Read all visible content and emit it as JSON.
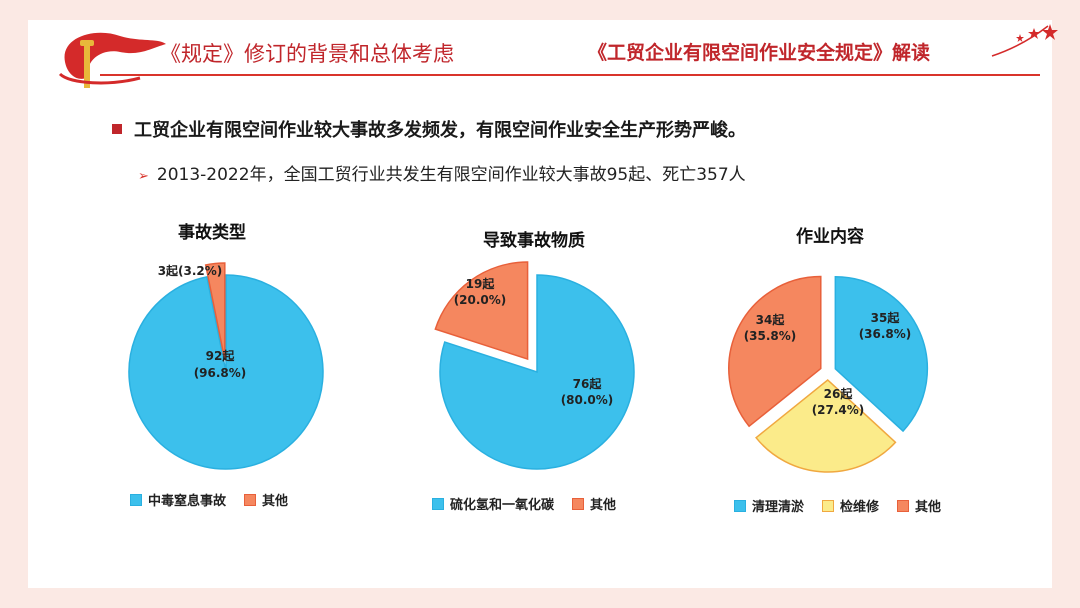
{
  "header": {
    "left_title": "《规定》修订的背景和总体考虑",
    "right_title": "《工贸企业有限空间作业安全规定》解读"
  },
  "bullets": {
    "main": "工贸企业有限空间作业较大事故多发频发，有限空间作业安全生产形势严峻。",
    "sub": "2013-2022年，全国工贸行业共发生有限空间作业较大事故95起、死亡357人"
  },
  "colors": {
    "blue": "#3cc0ec",
    "orange": "#f5875f",
    "yellow": "#fbeb8a",
    "red": "#c0262b"
  },
  "icons": {
    "bullet_square": "square-bullet-icon",
    "bullet_arrow": "arrow-bullet-icon"
  },
  "arrow_glyph": "➢",
  "chart_data": [
    {
      "type": "pie",
      "title": "事故类型",
      "slices": [
        {
          "label": "92起\n(96.8%)",
          "name": "中毒窒息事故",
          "value": 92,
          "color": "#3cc0ec",
          "explode": false
        },
        {
          "label": "3起(3.2%)",
          "name": "其他",
          "value": 3,
          "color": "#f5875f",
          "explode": true
        }
      ],
      "legend": [
        "中毒窒息事故",
        "其他"
      ],
      "legend_position": "bottom"
    },
    {
      "type": "pie",
      "title": "导致事故物质",
      "slices": [
        {
          "label": "76起\n(80.0%)",
          "name": "硫化氢和一氧化碳",
          "value": 76,
          "color": "#3cc0ec",
          "explode": false
        },
        {
          "label": "19起\n(20.0%)",
          "name": "其他",
          "value": 19,
          "color": "#f5875f",
          "explode": true
        }
      ],
      "legend": [
        "硫化氢和一氧化碳",
        "其他"
      ],
      "legend_position": "bottom"
    },
    {
      "type": "pie",
      "title": "作业内容",
      "slices": [
        {
          "label": "35起\n(36.8%)",
          "name": "清理清淤",
          "value": 35,
          "color": "#3cc0ec",
          "explode": true
        },
        {
          "label": "26起\n(27.4%)",
          "name": "检维修",
          "value": 26,
          "color": "#fbeb8a",
          "explode": true
        },
        {
          "label": "34起\n(35.8%)",
          "name": "其他",
          "value": 34,
          "color": "#f5875f",
          "explode": true
        }
      ],
      "legend": [
        "清理清淤",
        "检维修",
        "其他"
      ],
      "legend_position": "bottom"
    }
  ]
}
